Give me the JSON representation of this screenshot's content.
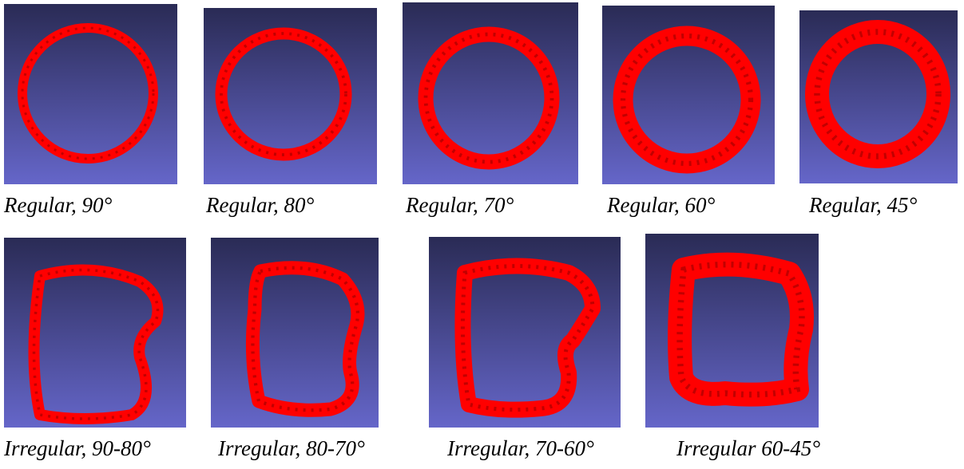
{
  "panels": [
    {
      "caption": "Regular, 90°"
    },
    {
      "caption": "Regular, 80°"
    },
    {
      "caption": "Regular, 70°"
    },
    {
      "caption": "Regular, 60°"
    },
    {
      "caption": "Regular, 45°"
    },
    {
      "caption": "Irregular, 90-80°"
    },
    {
      "caption": "Irregular, 80-70°"
    },
    {
      "caption": "Irregular, 70-60°"
    },
    {
      "caption": "Irregular 60-45°"
    }
  ]
}
